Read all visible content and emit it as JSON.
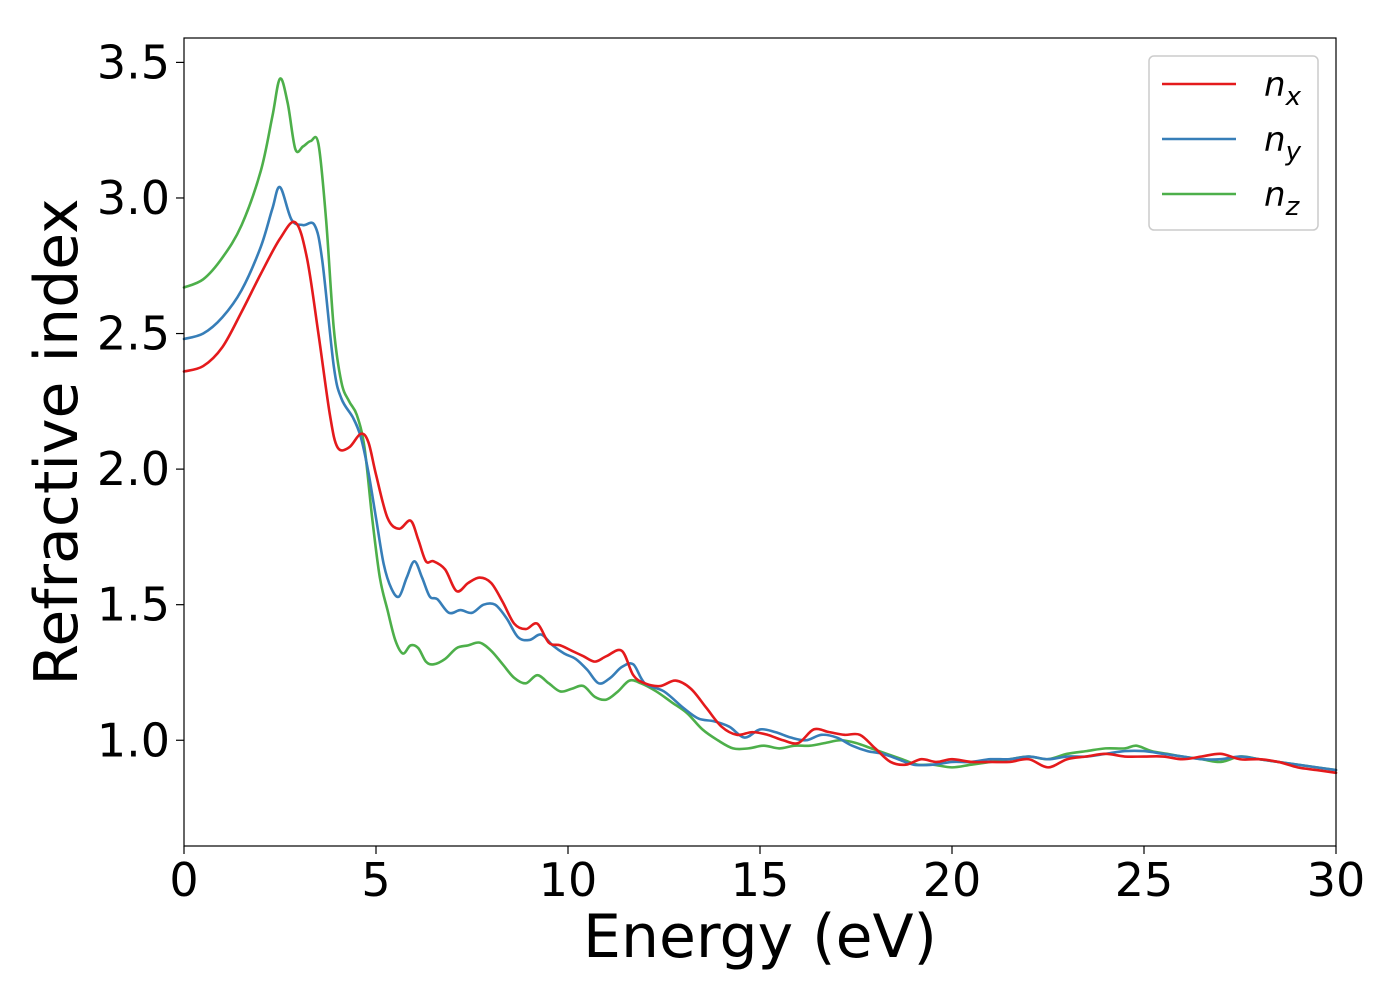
{
  "chart_data": {
    "type": "line",
    "xlabel": "Energy (eV)",
    "ylabel": "Refractive index",
    "xlim": [
      0,
      30
    ],
    "ylim": [
      0.61,
      3.59
    ],
    "xticks": [
      0,
      5,
      10,
      15,
      20,
      25,
      30
    ],
    "xtick_labels": [
      "0",
      "5",
      "10",
      "15",
      "20",
      "25",
      "30"
    ],
    "yticks": [
      1.0,
      1.5,
      2.0,
      2.5,
      3.0,
      3.5
    ],
    "ytick_labels": [
      "1.0",
      "1.5",
      "2.0",
      "2.5",
      "3.0",
      "3.5"
    ],
    "grid": false,
    "legend_position": "top-right",
    "series": [
      {
        "name": "n",
        "subscript": "x",
        "color": "#e41a1c",
        "x": [
          0,
          0.5,
          1,
          1.5,
          2,
          2.5,
          2.9,
          3.2,
          3.5,
          3.8,
          4.0,
          4.3,
          4.6,
          4.8,
          5.0,
          5.3,
          5.6,
          5.9,
          6.1,
          6.3,
          6.5,
          6.8,
          7.1,
          7.4,
          7.7,
          8.0,
          8.3,
          8.6,
          8.9,
          9.2,
          9.5,
          9.8,
          10.1,
          10.4,
          10.7,
          11.0,
          11.4,
          11.7,
          12.0,
          12.4,
          12.8,
          13.2,
          13.6,
          14.0,
          14.4,
          14.8,
          15.2,
          15.6,
          16.0,
          16.4,
          16.8,
          17.2,
          17.6,
          18.0,
          18.4,
          18.8,
          19.2,
          19.6,
          20.0,
          20.5,
          21.0,
          21.5,
          22.0,
          22.5,
          23.0,
          23.5,
          24.0,
          24.5,
          25.0,
          25.5,
          26.0,
          26.5,
          27.0,
          27.5,
          28.0,
          28.5,
          29.0,
          29.5,
          30.0
        ],
        "y": [
          2.36,
          2.38,
          2.45,
          2.58,
          2.72,
          2.85,
          2.91,
          2.78,
          2.5,
          2.2,
          2.08,
          2.08,
          2.13,
          2.1,
          1.98,
          1.82,
          1.78,
          1.81,
          1.74,
          1.66,
          1.66,
          1.63,
          1.55,
          1.58,
          1.6,
          1.58,
          1.51,
          1.43,
          1.41,
          1.43,
          1.36,
          1.35,
          1.33,
          1.31,
          1.29,
          1.31,
          1.33,
          1.24,
          1.21,
          1.2,
          1.22,
          1.19,
          1.12,
          1.05,
          1.02,
          1.03,
          1.02,
          1.0,
          0.99,
          1.04,
          1.03,
          1.02,
          1.02,
          0.97,
          0.92,
          0.91,
          0.93,
          0.92,
          0.93,
          0.92,
          0.92,
          0.92,
          0.93,
          0.9,
          0.93,
          0.94,
          0.95,
          0.94,
          0.94,
          0.94,
          0.93,
          0.94,
          0.95,
          0.93,
          0.93,
          0.92,
          0.9,
          0.89,
          0.88
        ]
      },
      {
        "name": "n",
        "subscript": "y",
        "color": "#377eb8",
        "x": [
          0,
          0.5,
          1,
          1.5,
          2,
          2.3,
          2.5,
          2.8,
          3.1,
          3.4,
          3.6,
          3.9,
          4.1,
          4.4,
          4.6,
          4.8,
          5.0,
          5.2,
          5.4,
          5.6,
          5.8,
          6.0,
          6.2,
          6.4,
          6.6,
          6.9,
          7.2,
          7.5,
          7.8,
          8.1,
          8.4,
          8.7,
          9.0,
          9.3,
          9.6,
          9.9,
          10.2,
          10.5,
          10.8,
          11.1,
          11.4,
          11.7,
          12.0,
          12.5,
          13.0,
          13.4,
          13.8,
          14.2,
          14.6,
          15.0,
          15.4,
          15.8,
          16.2,
          16.6,
          17.0,
          17.4,
          17.8,
          18.2,
          18.6,
          19.0,
          19.5,
          20.0,
          20.5,
          21.0,
          21.5,
          22.0,
          22.5,
          23.0,
          23.5,
          24.0,
          24.5,
          25.0,
          25.5,
          26.0,
          26.5,
          27.0,
          27.5,
          28.0,
          28.5,
          29.0,
          29.5,
          30.0
        ],
        "y": [
          2.48,
          2.5,
          2.56,
          2.66,
          2.82,
          2.96,
          3.04,
          2.92,
          2.9,
          2.9,
          2.77,
          2.38,
          2.26,
          2.19,
          2.12,
          1.99,
          1.82,
          1.65,
          1.56,
          1.53,
          1.6,
          1.66,
          1.6,
          1.53,
          1.52,
          1.47,
          1.48,
          1.47,
          1.5,
          1.5,
          1.45,
          1.38,
          1.37,
          1.39,
          1.35,
          1.32,
          1.3,
          1.26,
          1.21,
          1.23,
          1.27,
          1.28,
          1.21,
          1.18,
          1.12,
          1.08,
          1.07,
          1.05,
          1.01,
          1.04,
          1.03,
          1.01,
          1.0,
          1.02,
          1.01,
          0.98,
          0.96,
          0.95,
          0.93,
          0.91,
          0.91,
          0.92,
          0.92,
          0.93,
          0.93,
          0.94,
          0.93,
          0.94,
          0.94,
          0.95,
          0.96,
          0.96,
          0.95,
          0.94,
          0.93,
          0.93,
          0.94,
          0.93,
          0.92,
          0.91,
          0.9,
          0.89
        ]
      },
      {
        "name": "n",
        "subscript": "z",
        "color": "#4daf4a",
        "x": [
          0,
          0.5,
          1,
          1.5,
          2,
          2.3,
          2.5,
          2.7,
          2.9,
          3.1,
          3.3,
          3.5,
          3.7,
          3.9,
          4.1,
          4.3,
          4.5,
          4.7,
          4.9,
          5.1,
          5.3,
          5.5,
          5.7,
          5.9,
          6.1,
          6.3,
          6.5,
          6.8,
          7.1,
          7.4,
          7.7,
          8.0,
          8.3,
          8.6,
          8.9,
          9.2,
          9.5,
          9.8,
          10.1,
          10.4,
          10.7,
          11.0,
          11.3,
          11.6,
          11.9,
          12.3,
          12.7,
          13.1,
          13.5,
          13.9,
          14.3,
          14.7,
          15.1,
          15.5,
          15.9,
          16.3,
          16.7,
          17.1,
          17.5,
          17.9,
          18.3,
          18.7,
          19.1,
          19.5,
          20.0,
          20.5,
          21.0,
          21.5,
          22.0,
          22.5,
          23.0,
          23.5,
          24.0,
          24.5,
          24.8,
          25.2,
          25.6,
          26.0,
          26.5,
          27.0,
          27.5,
          28.0,
          28.5,
          29.0,
          29.5,
          30.0
        ],
        "y": [
          2.67,
          2.7,
          2.78,
          2.9,
          3.1,
          3.3,
          3.44,
          3.35,
          3.18,
          3.19,
          3.21,
          3.2,
          2.92,
          2.52,
          2.32,
          2.25,
          2.2,
          2.08,
          1.82,
          1.6,
          1.48,
          1.37,
          1.32,
          1.35,
          1.34,
          1.29,
          1.28,
          1.3,
          1.34,
          1.35,
          1.36,
          1.33,
          1.28,
          1.23,
          1.21,
          1.24,
          1.21,
          1.18,
          1.19,
          1.2,
          1.16,
          1.15,
          1.18,
          1.22,
          1.21,
          1.18,
          1.14,
          1.1,
          1.04,
          1.0,
          0.97,
          0.97,
          0.98,
          0.97,
          0.98,
          0.98,
          0.99,
          1.0,
          0.99,
          0.97,
          0.95,
          0.93,
          0.91,
          0.91,
          0.9,
          0.91,
          0.92,
          0.93,
          0.94,
          0.93,
          0.95,
          0.96,
          0.97,
          0.97,
          0.98,
          0.96,
          0.95,
          0.94,
          0.93,
          0.92,
          0.94,
          0.93,
          0.92,
          0.91,
          0.9,
          0.89
        ]
      }
    ]
  }
}
